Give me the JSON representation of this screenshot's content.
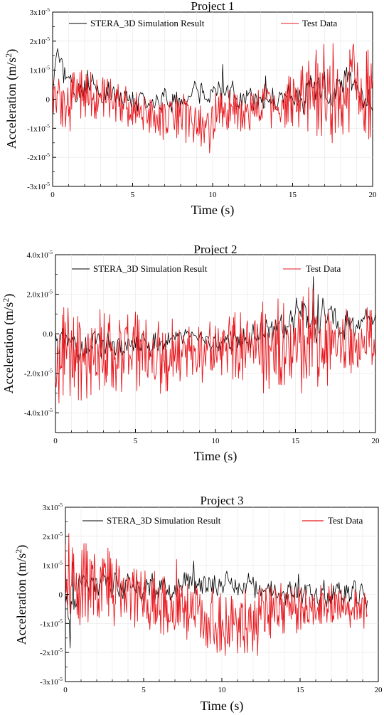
{
  "colors": {
    "simulation": "#000000",
    "test": "#e8161c",
    "grid": "#e6e6e6",
    "axis": "#000000"
  },
  "chart_data": [
    {
      "type": "line",
      "title": "Project 1",
      "xlabel": "Time (s)",
      "ylabel": "Acceleration (m/s²)",
      "ylabel_parts": {
        "main": "Acceleration (m/s",
        "sup": "2",
        "end": ")"
      },
      "xlim": [
        0,
        20
      ],
      "ylim": [
        -3e-05,
        3e-05
      ],
      "grid": true,
      "legend_placement": "top",
      "x_ticks": [
        0,
        5,
        10,
        15,
        20
      ],
      "x_tick_labels": [
        "0",
        "5",
        "10",
        "15",
        "20"
      ],
      "y_ticks": [
        3e-05,
        2e-05,
        1e-05,
        0,
        -1e-05,
        -2e-05,
        -3e-05
      ],
      "y_tick_labels": [
        {
          "base": "3x10",
          "exp": "-5"
        },
        {
          "base": "2x10",
          "exp": "-5"
        },
        {
          "base": "1x10",
          "exp": "-5"
        },
        {
          "base": "0",
          "exp": ""
        },
        {
          "base": "-1x10",
          "exp": "-5"
        },
        {
          "base": "-2x10",
          "exp": "-5"
        },
        {
          "base": "-3x10",
          "exp": "-5"
        }
      ],
      "seed": 11,
      "series": [
        {
          "name": "STERA_3D Simulation Result",
          "color_key": "simulation",
          "envelope_x": [
            0,
            0.3,
            0.6,
            1,
            1.5,
            2,
            3,
            4,
            5,
            6,
            7,
            8,
            9,
            10,
            11,
            12,
            13,
            14,
            15,
            16,
            17,
            18,
            18.5,
            19,
            19.5,
            20
          ],
          "envelope_mean": [
            2e-06,
            1.4e-05,
            1e-05,
            6e-06,
            3e-06,
            4e-06,
            2e-06,
            3e-06,
            0,
            -2e-06,
            1e-06,
            -2e-06,
            2e-06,
            3e-06,
            1e-06,
            -1e-06,
            1e-06,
            0,
            1e-06,
            2e-06,
            2e-06,
            3e-06,
            6e-06,
            4e-06,
            2e-06,
            -3e-06
          ],
          "envelope_amp": [
            4e-06,
            3e-06,
            4e-06,
            4e-06,
            4e-06,
            3.5e-06,
            3.5e-06,
            3.5e-06,
            3.5e-06,
            3.5e-06,
            3.5e-06,
            3.5e-06,
            3.5e-06,
            4e-06,
            3.5e-06,
            3.5e-06,
            3.5e-06,
            3.5e-06,
            4e-06,
            5e-06,
            5e-06,
            4.5e-06,
            4e-06,
            4.5e-06,
            4.5e-06,
            4e-06
          ],
          "spikes": [
            [
              0.35,
              1.55e-05
            ],
            [
              2.2,
              1e-05
            ],
            [
              10.6,
              1.2e-05
            ],
            [
              13.3,
              8e-06
            ],
            [
              17.8,
              6e-06
            ]
          ],
          "samples": 320
        },
        {
          "name": "Test Data",
          "color_key": "test",
          "envelope_x": [
            0,
            1,
            2,
            3,
            4,
            5,
            6,
            7,
            8,
            9,
            10,
            11,
            12,
            13,
            14,
            15,
            16,
            17,
            18,
            19,
            20
          ],
          "envelope_mean": [
            0,
            -1e-06,
            2e-06,
            1e-06,
            -1e-06,
            -3e-06,
            -5e-06,
            -6e-06,
            -6e-06,
            -8e-06,
            -7e-06,
            -5e-06,
            -6e-06,
            -3e-06,
            -2e-06,
            0,
            3e-06,
            3e-06,
            3e-06,
            2e-06,
            1e-06
          ],
          "envelope_amp": [
            5e-06,
            6e-06,
            5e-06,
            5e-06,
            4.5e-06,
            4.5e-06,
            4.5e-06,
            5e-06,
            5e-06,
            5.5e-06,
            5.5e-06,
            5e-06,
            5e-06,
            5e-06,
            5e-06,
            6e-06,
            9e-06,
            1e-05,
            1e-05,
            1e-05,
            9e-06
          ],
          "spikes": [
            [
              9.8,
              -1.85e-05
            ],
            [
              16.5,
              1.7e-05
            ],
            [
              18.8,
              1.9e-05
            ],
            [
              19.7,
              1.7e-05
            ],
            [
              17.5,
              -1.5e-05
            ],
            [
              1.1,
              -1.1e-05
            ]
          ],
          "samples": 420
        }
      ]
    },
    {
      "type": "line",
      "title": "Project 2",
      "xlabel": "Time (s)",
      "ylabel": "Acceleration (m/s²)",
      "ylabel_parts": {
        "main": "Acceleration (m/s",
        "sup": "2",
        "end": ")"
      },
      "xlim": [
        0,
        20
      ],
      "ylim": [
        -5e-05,
        4e-05
      ],
      "grid": true,
      "legend_placement": "top",
      "x_ticks": [
        0,
        5,
        10,
        15,
        20
      ],
      "x_tick_labels": [
        "0",
        "5",
        "10",
        "15",
        "20"
      ],
      "y_ticks": [
        4e-05,
        2e-05,
        0,
        -2e-05,
        -4e-05
      ],
      "y_tick_labels": [
        {
          "base": "4.0x10",
          "exp": "-5"
        },
        {
          "base": "2.0x10",
          "exp": "-5"
        },
        {
          "base": "0.0",
          "exp": ""
        },
        {
          "base": "-2.0x10",
          "exp": "-5"
        },
        {
          "base": "-4.0x10",
          "exp": "-5"
        }
      ],
      "seed": 23,
      "series": [
        {
          "name": "STERA_3D Simulation Result",
          "color_key": "simulation",
          "envelope_x": [
            0,
            1,
            2,
            3,
            4,
            5,
            6,
            7,
            8,
            9,
            10,
            11,
            12,
            13,
            14,
            15,
            16,
            17,
            18,
            19,
            20
          ],
          "envelope_mean": [
            -3e-06,
            -6e-06,
            -5e-06,
            -6e-06,
            -5e-06,
            -4e-06,
            -4e-06,
            -3e-06,
            -1e-06,
            -2e-06,
            -4e-06,
            -3e-06,
            -2e-06,
            3e-06,
            6e-06,
            8e-06,
            1e-05,
            7e-06,
            5e-06,
            5e-06,
            6e-06
          ],
          "envelope_amp": [
            6e-06,
            6e-06,
            6e-06,
            6e-06,
            5.5e-06,
            5.5e-06,
            5e-06,
            4e-06,
            3e-06,
            3e-06,
            4e-06,
            5e-06,
            5e-06,
            7e-06,
            8e-06,
            8e-06,
            9e-06,
            8e-06,
            7e-06,
            6e-06,
            4e-06
          ],
          "spikes": [
            [
              16.1,
              2.9e-05
            ],
            [
              16.4,
              2e-05
            ],
            [
              19.6,
              9e-06
            ]
          ],
          "samples": 340
        },
        {
          "name": "Test Data",
          "color_key": "test",
          "envelope_x": [
            0,
            1,
            2,
            3,
            4,
            5,
            6,
            7,
            8,
            9,
            10,
            11,
            12,
            13,
            14,
            15,
            16,
            17,
            18,
            19,
            20
          ],
          "envelope_mean": [
            -1e-05,
            -1e-05,
            -1e-05,
            -9e-06,
            -9e-06,
            -8e-06,
            -1e-05,
            -1e-05,
            -1.1e-05,
            -1e-05,
            -8e-06,
            -7e-06,
            -5e-06,
            -5e-06,
            -5e-06,
            -4e-06,
            -2e-06,
            -4e-06,
            -5e-06,
            -5e-06,
            -6e-06
          ],
          "envelope_amp": [
            1.6e-05,
            1.5e-05,
            1.4e-05,
            1.3e-05,
            1.3e-05,
            1.3e-05,
            1.3e-05,
            1.2e-05,
            9e-06,
            9e-06,
            1e-05,
            1.2e-05,
            1.3e-05,
            1.4e-05,
            1.4e-05,
            1.5e-05,
            1.6e-05,
            1.4e-05,
            1.3e-05,
            1.2e-05,
            1.1e-05
          ],
          "spikes": [
            [
              0.8,
              1.3e-05
            ],
            [
              0.5,
              -3.1e-05
            ],
            [
              13.0,
              -3e-05
            ],
            [
              15.4,
              -3e-05
            ],
            [
              6.9,
              -2.9e-05
            ],
            [
              5.0,
              1.1e-05
            ]
          ],
          "samples": 460
        }
      ]
    },
    {
      "type": "line",
      "title": "Project 3",
      "xlabel": "Time (s)",
      "ylabel": "Acceleration (m/s²)",
      "ylabel_parts": {
        "main": "Acceleration (m/s",
        "sup": "2",
        "end": ")"
      },
      "xlim": [
        0,
        20
      ],
      "ylim": [
        -3e-05,
        3e-05
      ],
      "grid": true,
      "legend_placement": "top",
      "x_ticks": [
        0,
        5,
        10,
        15,
        20
      ],
      "x_tick_labels": [
        "0",
        "5",
        "10",
        "15",
        "20"
      ],
      "y_ticks": [
        3e-05,
        2e-05,
        1e-05,
        0,
        -1e-05,
        -2e-05,
        -3e-05
      ],
      "y_tick_labels": [
        {
          "base": "3x10",
          "exp": "-5"
        },
        {
          "base": "2x10",
          "exp": "-5"
        },
        {
          "base": "1x10",
          "exp": "-5"
        },
        {
          "base": "0",
          "exp": ""
        },
        {
          "base": "-1x10",
          "exp": "-5"
        },
        {
          "base": "-2x10",
          "exp": "-5"
        },
        {
          "base": "-3x10",
          "exp": "-5"
        }
      ],
      "seed": 37,
      "series": [
        {
          "name": "STERA_3D Simulation Result",
          "color_key": "simulation",
          "x_end": 19.3,
          "envelope_x": [
            0,
            0.3,
            0.6,
            1,
            2,
            3,
            4,
            5,
            6,
            7,
            8,
            9,
            10,
            11,
            12,
            13,
            14,
            15,
            16,
            17,
            18,
            19,
            19.3
          ],
          "envelope_mean": [
            -3e-06,
            -4e-06,
            2e-06,
            3e-06,
            4e-06,
            3e-06,
            3e-06,
            3e-06,
            2e-06,
            2e-06,
            6e-06,
            5e-06,
            4e-06,
            3e-06,
            3e-06,
            2e-06,
            0,
            0,
            0,
            1e-06,
            1e-06,
            0,
            -3e-06
          ],
          "envelope_amp": [
            5e-06,
            6e-06,
            5e-06,
            4e-06,
            3.5e-06,
            3.5e-06,
            3.5e-06,
            3.5e-06,
            3.5e-06,
            4e-06,
            4e-06,
            4e-06,
            3.5e-06,
            3.5e-06,
            3.5e-06,
            3.5e-06,
            3.5e-06,
            3.5e-06,
            3.5e-06,
            3.5e-06,
            3.5e-06,
            3.5e-06,
            3.5e-06
          ],
          "spikes": [
            [
              0.3,
              -1.85e-05
            ],
            [
              0.5,
              1.1e-05
            ],
            [
              8.2,
              1.15e-05
            ],
            [
              10.3,
              8e-06
            ],
            [
              14.9,
              7e-06
            ]
          ],
          "samples": 320
        },
        {
          "name": "Test Data",
          "color_key": "test",
          "x_end": 19.3,
          "envelope_x": [
            0,
            0.5,
            1,
            2,
            3,
            4,
            5,
            6,
            7,
            8,
            9,
            10,
            11,
            12,
            13,
            14,
            15,
            16,
            17,
            18,
            19,
            19.3
          ],
          "envelope_mean": [
            5e-06,
            4e-06,
            4e-06,
            3e-06,
            2e-06,
            0,
            -1e-06,
            -3e-06,
            -5e-06,
            -5e-06,
            -8e-06,
            -1e-05,
            -1e-05,
            -9e-06,
            -6e-06,
            -5e-06,
            -5e-06,
            -4e-06,
            -3e-06,
            -4e-06,
            -5e-06,
            -6e-06
          ],
          "envelope_amp": [
            8e-06,
            8e-06,
            9e-06,
            8e-06,
            8e-06,
            7e-06,
            6.5e-06,
            6.5e-06,
            6.5e-06,
            6.5e-06,
            6.5e-06,
            7e-06,
            7e-06,
            6.5e-06,
            6e-06,
            5.5e-06,
            5e-06,
            4.5e-06,
            4.5e-06,
            4.5e-06,
            4.5e-06,
            4.5e-06
          ],
          "spikes": [
            [
              0.2,
              2.1e-05
            ],
            [
              1.2,
              1.75e-05
            ],
            [
              2.7,
              1.6e-05
            ],
            [
              10.2,
              -2.1e-05
            ],
            [
              12.3,
              -2.1e-05
            ],
            [
              7.1,
              1.2e-05
            ]
          ],
          "samples": 440
        }
      ]
    }
  ]
}
